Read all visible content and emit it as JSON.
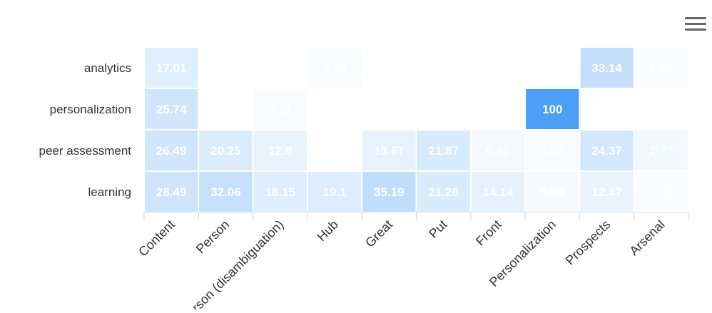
{
  "chart_data": {
    "type": "heatmap",
    "title": "",
    "xlabel": "",
    "ylabel": "",
    "x_categories": [
      "Content",
      "Person",
      "Person (disambiguation)",
      "Hub",
      "Great",
      "Put",
      "Front",
      "Personalization",
      "Prospects",
      "Arsenal"
    ],
    "y_categories": [
      "analytics",
      "personalization",
      "peer assessment",
      "learning"
    ],
    "value_range": [
      0,
      100
    ],
    "color_scale": [
      "#ffffff",
      "#4b9ff6"
    ],
    "label_color": "#ffffff",
    "values": [
      [
        17.01,
        null,
        null,
        3.84,
        null,
        null,
        null,
        null,
        33.14,
        2.51
      ],
      [
        25.74,
        null,
        3.11,
        null,
        null,
        null,
        null,
        100,
        null,
        null
      ],
      [
        26.49,
        20.25,
        12.8,
        null,
        13.67,
        21.87,
        6.61,
        4.07,
        24.37,
        7.77
      ],
      [
        28.49,
        32.06,
        18.15,
        19.1,
        35.19,
        21.26,
        14.14,
        5.03,
        12.47,
        2.52
      ]
    ]
  },
  "toolbar": {
    "menu_icon": "hamburger-menu-icon"
  }
}
